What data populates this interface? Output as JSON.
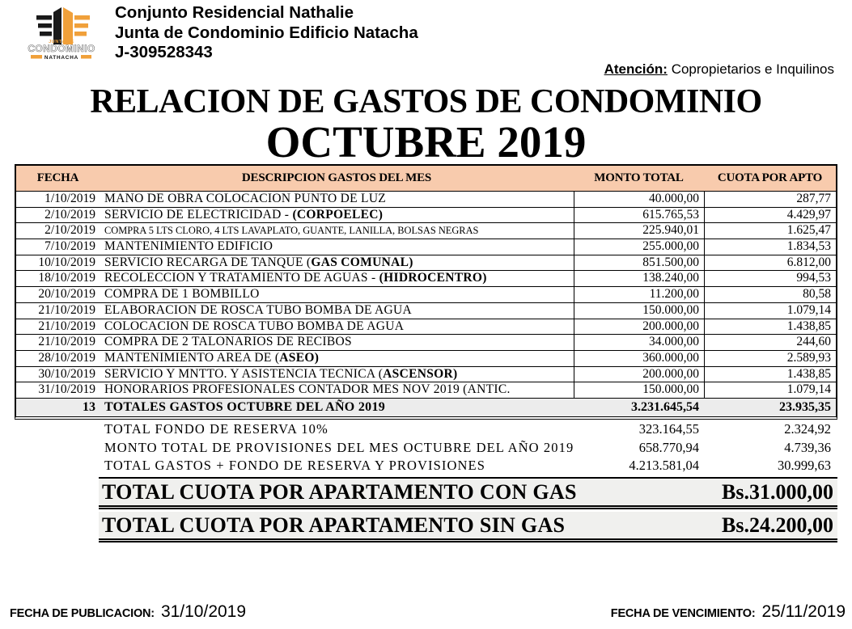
{
  "colors": {
    "table_header_bg": "#F8CBAD",
    "totals_row_bg": "#ECECEC",
    "grand_total_bg": "#F0F0EE",
    "logo_orange": "#F0A03A",
    "logo_black": "#1A1A1A"
  },
  "header": {
    "company_lines": [
      "Conjunto Residencial Nathalie",
      "Junta de Condominio Edificio Natacha",
      "J-309528343"
    ],
    "attention_label": "Atención:",
    "attention_text": "Copropietarios e Inquilinos",
    "logo": {
      "junta_de": "JUNTA DE",
      "condominio": "CONDOMINIO",
      "nathacha": "NATHACHA"
    }
  },
  "title": {
    "line1": "RELACION DE GASTOS DE CONDOMINIO",
    "line2": "OCTUBRE 2019"
  },
  "table": {
    "columns": [
      "FECHA",
      "DESCRIPCION GASTOS DEL MES",
      "MONTO TOTAL",
      "CUOTA POR APTO"
    ],
    "rows": [
      {
        "fecha": "1/10/2019",
        "desc": [
          {
            "t": "MANO DE OBRA COLOCACION PUNTO DE LUZ"
          }
        ],
        "monto": "40.000,00",
        "cuota": "287,77"
      },
      {
        "fecha": "2/10/2019",
        "desc": [
          {
            "t": "SERVICIO DE ELECTRICIDAD - "
          },
          {
            "t": "(CORPOELEC)",
            "b": true
          }
        ],
        "monto": "615.765,53",
        "cuota": "4.429,97"
      },
      {
        "fecha": "2/10/2019",
        "small": true,
        "desc": [
          {
            "t": "COMPRA 5 LTS CLORO, 4 LTS LAVAPLATO, GUANTE, LANILLA, BOLSAS NEGRAS"
          }
        ],
        "monto": "225.940,01",
        "cuota": "1.625,47"
      },
      {
        "fecha": "7/10/2019",
        "desc": [
          {
            "t": "MANTENIMIENTO EDIFICIO"
          }
        ],
        "monto": "255.000,00",
        "cuota": "1.834,53"
      },
      {
        "fecha": "10/10/2019",
        "desc": [
          {
            "t": "SERVICIO RECARGA DE TANQUE ("
          },
          {
            "t": "GAS COMUNAL)",
            "b": true
          }
        ],
        "monto": "851.500,00",
        "cuota": "6.812,00"
      },
      {
        "fecha": "18/10/2019",
        "desc": [
          {
            "t": "RECOLECCION Y TRATAMIENTO DE AGUAS - "
          },
          {
            "t": "(HIDROCENTRO)",
            "b": true
          }
        ],
        "monto": "138.240,00",
        "cuota": "994,53"
      },
      {
        "fecha": "20/10/2019",
        "desc": [
          {
            "t": "COMPRA DE 1 BOMBILLO"
          }
        ],
        "monto": "11.200,00",
        "cuota": "80,58"
      },
      {
        "fecha": "21/10/2019",
        "desc": [
          {
            "t": "ELABORACION DE ROSCA TUBO BOMBA DE AGUA"
          }
        ],
        "monto": "150.000,00",
        "cuota": "1.079,14"
      },
      {
        "fecha": "21/10/2019",
        "desc": [
          {
            "t": "COLOCACION DE ROSCA TUBO BOMBA DE AGUA"
          }
        ],
        "monto": "200.000,00",
        "cuota": "1.438,85"
      },
      {
        "fecha": "21/10/2019",
        "desc": [
          {
            "t": "COMPRA DE 2 TALONARIOS DE RECIBOS"
          }
        ],
        "monto": "34.000,00",
        "cuota": "244,60"
      },
      {
        "fecha": "28/10/2019",
        "desc": [
          {
            "t": "MANTENIMIENTO AREA DE ("
          },
          {
            "t": "ASEO)",
            "b": true
          }
        ],
        "monto": "360.000,00",
        "cuota": "2.589,93"
      },
      {
        "fecha": "30/10/2019",
        "desc": [
          {
            "t": "SERVICIO Y MNTTO. Y ASISTENCIA TECNICA ("
          },
          {
            "t": "ASCENSOR)",
            "b": true
          }
        ],
        "monto": "200.000,00",
        "cuota": "1.438,85"
      },
      {
        "fecha": "31/10/2019",
        "desc": [
          {
            "t": "HONORARIOS PROFESIONALES CONTADOR MES NOV 2019 (ANTIC."
          }
        ],
        "monto": "150.000,00",
        "cuota": "1.079,14"
      }
    ],
    "totals_row": {
      "count": "13",
      "label": "TOTALES GASTOS OCTUBRE DEL AÑO 2019",
      "monto": "3.231.645,54",
      "cuota": "23.935,35"
    }
  },
  "summary_rows": [
    {
      "label": "TOTAL FONDO DE RESERVA 10%",
      "monto": "323.164,55",
      "cuota": "2.324,92"
    },
    {
      "label": "MONTO TOTAL DE PROVISIONES DEL MES OCTUBRE DEL AÑO 2019",
      "monto": "658.770,94",
      "cuota": "4.739,36"
    },
    {
      "label": "TOTAL GASTOS + FONDO DE RESERVA Y PROVISIONES",
      "monto": "4.213.581,04",
      "cuota": "30.999,63"
    }
  ],
  "grand_totals": [
    {
      "label": "TOTAL CUOTA POR APARTAMENTO CON GAS",
      "value": "Bs.31.000,00"
    },
    {
      "label": "TOTAL CUOTA POR APARTAMENTO SIN GAS",
      "value": "Bs.24.200,00"
    }
  ],
  "footer": {
    "publication_label": "FECHA DE PUBLICACION:",
    "publication_date": "31/10/2019",
    "due_label": "FECHA DE VENCIMIENTO:",
    "due_date": "25/11/2019"
  }
}
